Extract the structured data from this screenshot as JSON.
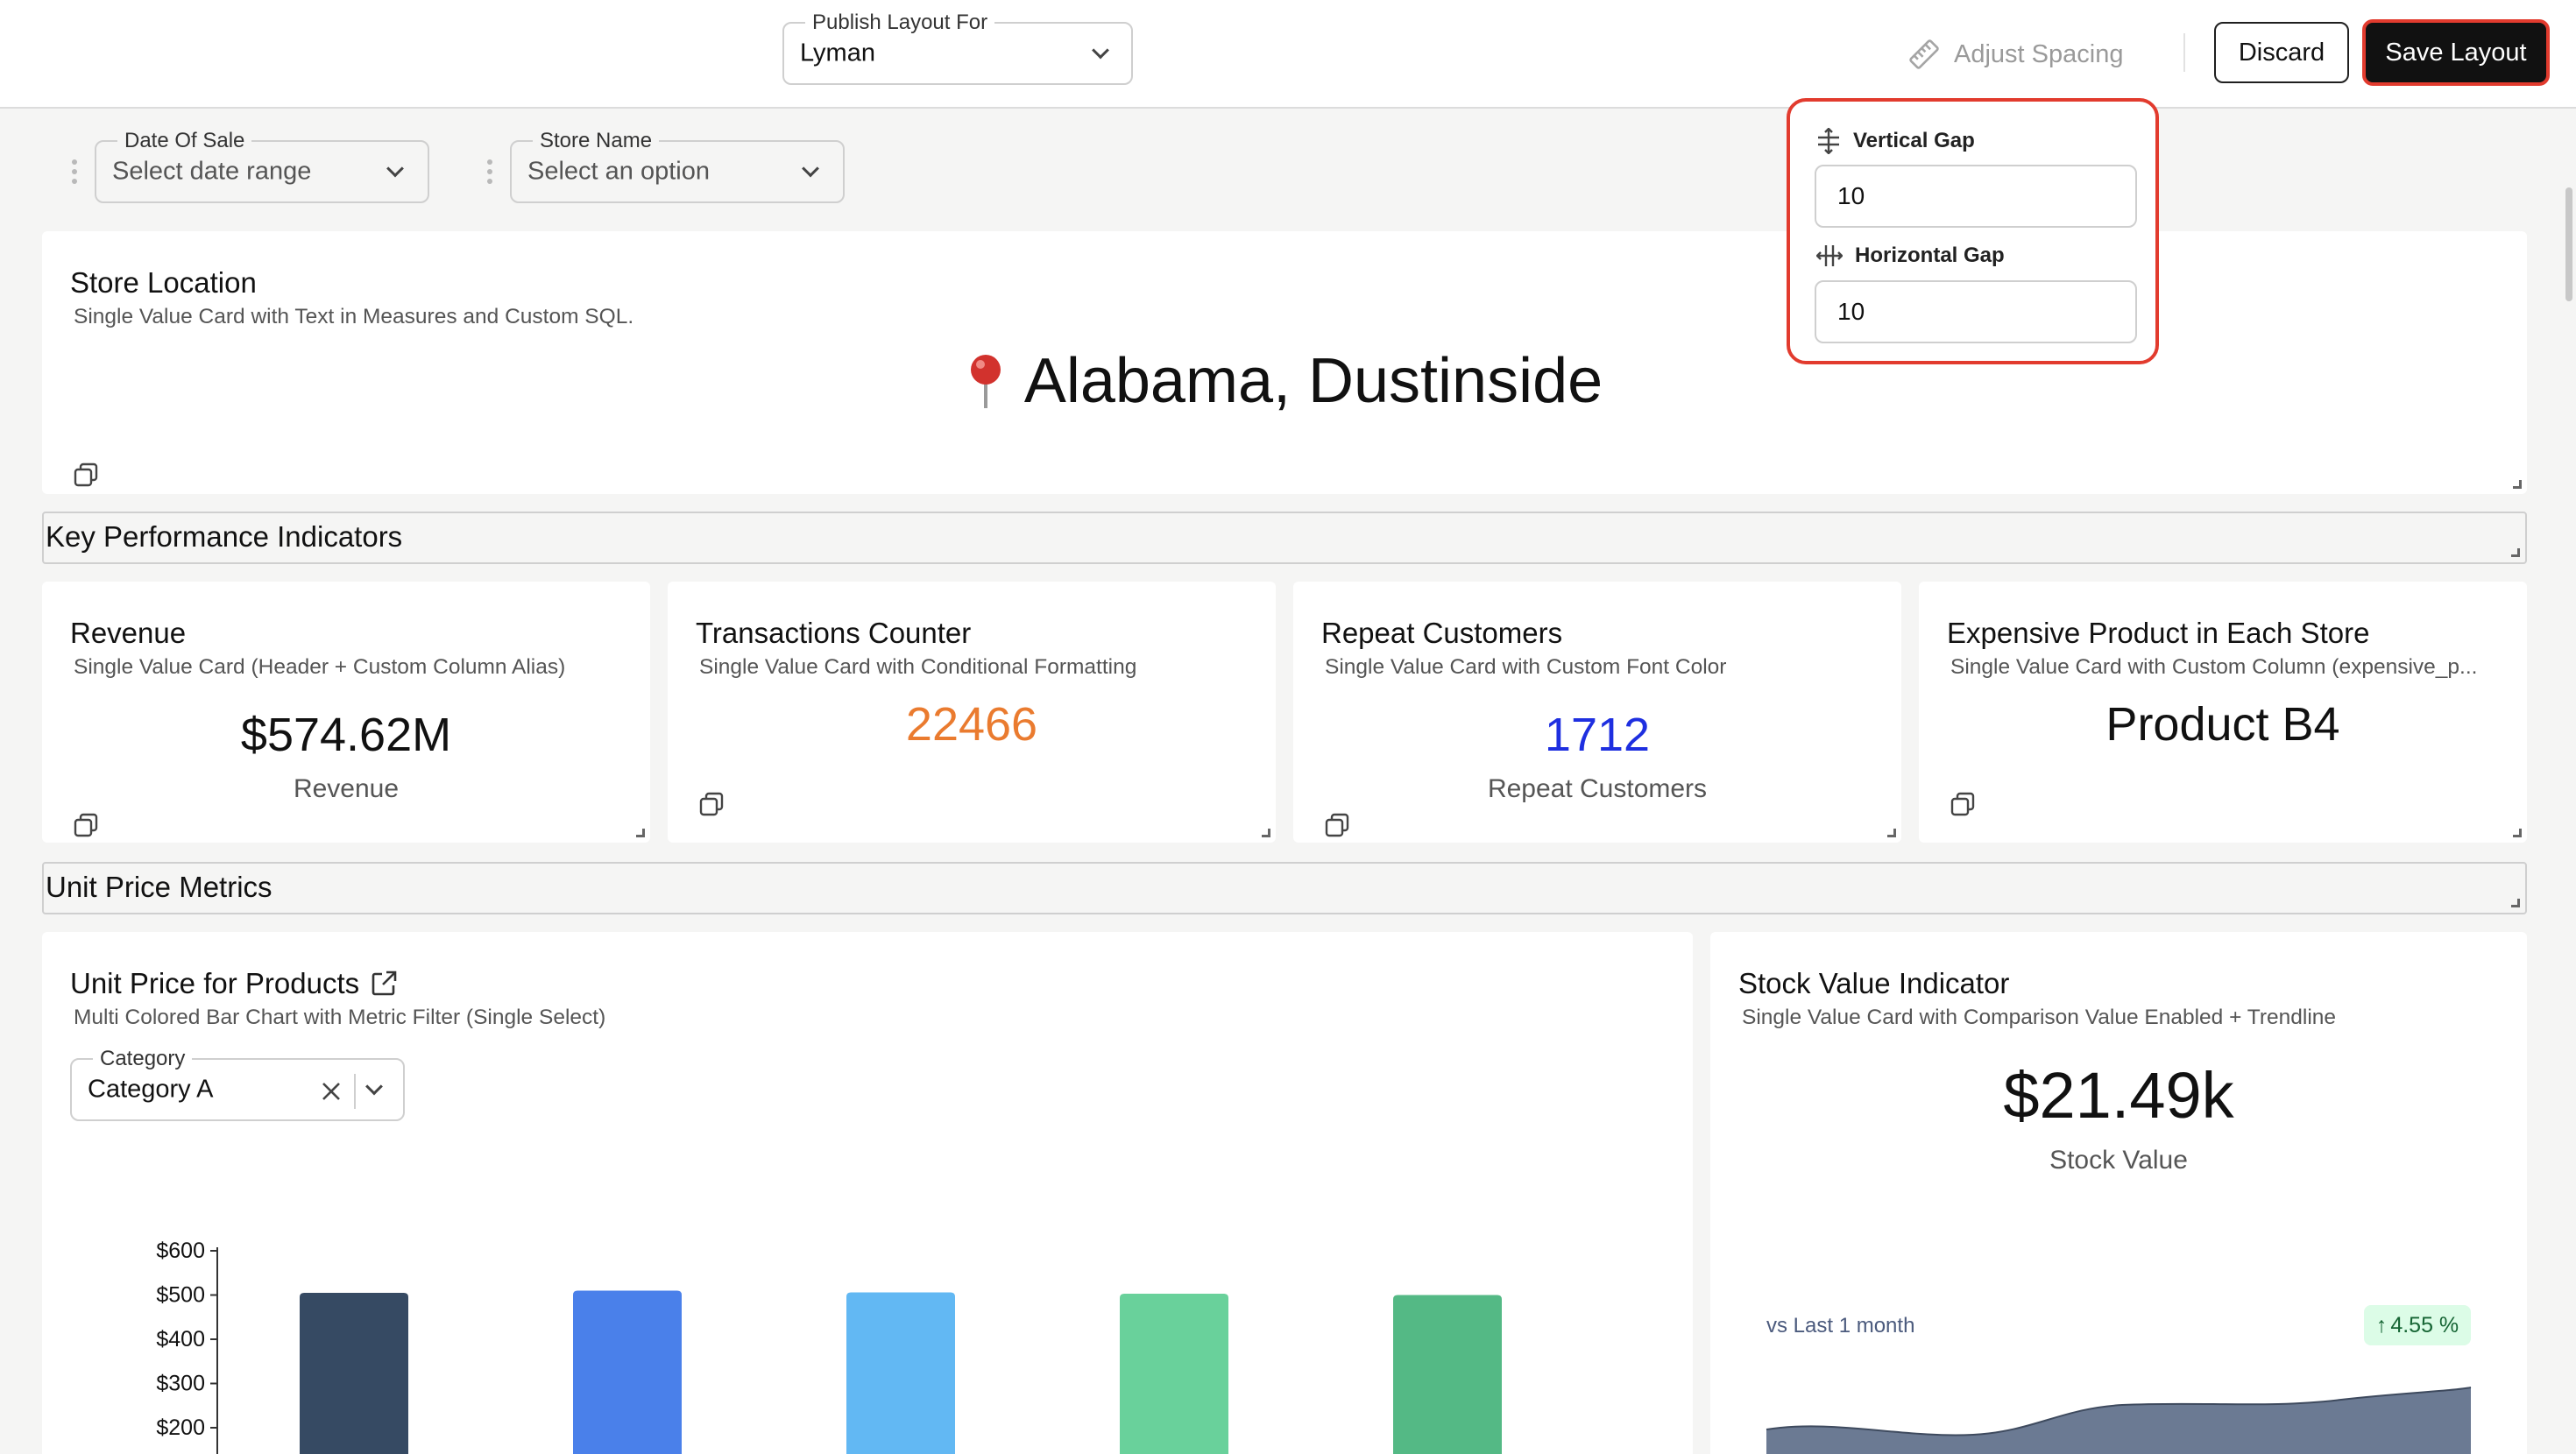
{
  "header": {
    "publish_label": "Publish Layout For",
    "publish_value": "Lyman",
    "adjust_spacing": "Adjust Spacing",
    "discard": "Discard",
    "save_layout": "Save Layout"
  },
  "spacing_popover": {
    "vertical_label": "Vertical Gap",
    "vertical_value": "10",
    "horizontal_label": "Horizontal Gap",
    "horizontal_value": "10"
  },
  "filters": [
    {
      "label": "Date Of Sale",
      "placeholder": "Select date range"
    },
    {
      "label": "Store Name",
      "placeholder": "Select an option"
    }
  ],
  "store_location": {
    "title": "Store Location",
    "subtitle": "Single Value Card with Text in Measures and Custom SQL.",
    "value": "Alabama, Dustinside",
    "icon": "pushpin-icon"
  },
  "sections": {
    "kpi": "Key Performance Indicators",
    "unit_price": "Unit Price Metrics"
  },
  "kpi_cards": [
    {
      "title": "Revenue",
      "subtitle": "Single Value Card (Header + Custom Column Alias)",
      "value": "$574.62M",
      "caption": "Revenue",
      "color": "#111111"
    },
    {
      "title": "Transactions Counter",
      "subtitle": "Single Value Card with Conditional Formatting",
      "value": "22466",
      "caption": "",
      "color": "#ea7b2f"
    },
    {
      "title": "Repeat Customers",
      "subtitle": "Single Value Card with Custom Font Color",
      "value": "1712",
      "caption": "Repeat Customers",
      "color": "#1e2fe0"
    },
    {
      "title": "Expensive Product in Each Store",
      "subtitle": "Single Value Card with Custom Column (expensive_p...",
      "value": "Product B4",
      "caption": "",
      "color": "#111111"
    }
  ],
  "unit_price_card": {
    "title": "Unit Price for Products",
    "subtitle": "Multi Colored Bar Chart with Metric Filter (Single Select)",
    "filter_label": "Category",
    "filter_value": "Category A"
  },
  "stock_card": {
    "title": "Stock Value Indicator",
    "subtitle": "Single Value Card with Comparison Value Enabled + Trendline",
    "value": "$21.49k",
    "caption": "Stock Value",
    "comparison_label": "vs Last 1 month",
    "change": "4.55 %",
    "change_color": "#166534",
    "trend_color": "#5b6b85"
  },
  "chart_data": {
    "type": "bar",
    "title": "",
    "xlabel": "",
    "ylabel": "",
    "ylim": [
      0,
      600
    ],
    "y_ticks": [
      "$600",
      "$500",
      "$400",
      "$300",
      "$200"
    ],
    "y_tick_values": [
      600,
      500,
      400,
      300,
      200
    ],
    "categories": [
      "",
      "",
      "",
      "",
      ""
    ],
    "values": [
      505,
      510,
      506,
      503,
      500
    ],
    "colors": [
      "#364a63",
      "#4a80ea",
      "#62b8f3",
      "#69d19b",
      "#54b985"
    ]
  }
}
